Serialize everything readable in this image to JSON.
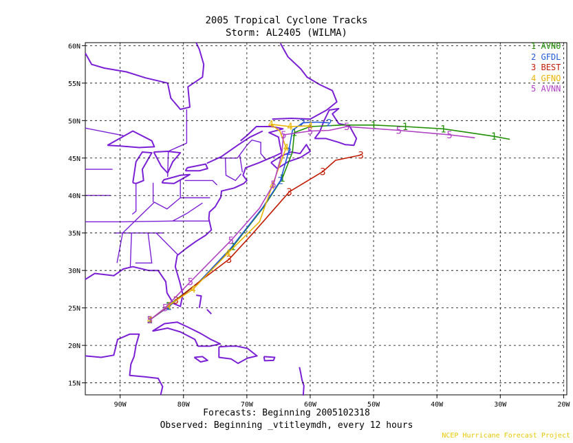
{
  "title": "2005 Tropical Cyclone Tracks",
  "subtitle": "Storm: AL2405 (WILMA)",
  "footer_forecasts": "Forecasts: Beginning 2005102318",
  "footer_observed": "Observed: Beginning _vtitleymdh, every 12 hours",
  "credit": "NCEP Hurricane Forecast Project",
  "colors": {
    "land": "#7a1fd6",
    "grid": "#000000",
    "AVNO": "#1e8f00",
    "GFDL": "#1f56d6",
    "BEST": "#c21a00",
    "GFNO": "#e8b400",
    "AVNN": "#b03fc4"
  },
  "legend": [
    {
      "num": "1",
      "name": "AVNO",
      "color": "#1e8f00"
    },
    {
      "num": "2",
      "name": "GFDL",
      "color": "#1f56d6"
    },
    {
      "num": "3",
      "name": "BEST",
      "color": "#c21a00"
    },
    {
      "num": "4",
      "name": "GFNO",
      "color": "#e8b400"
    },
    {
      "num": "5",
      "name": "AVNN",
      "color": "#b03fc4"
    }
  ],
  "axes": {
    "x_ticks": [
      "90W",
      "80W",
      "70W",
      "60W",
      "50W",
      "40W",
      "30W",
      "20W"
    ],
    "y_ticks": [
      "15N",
      "20N",
      "25N",
      "30N",
      "35N",
      "40N",
      "45N",
      "50N",
      "55N",
      "60N"
    ],
    "lon_range": [
      -95.5,
      -19.5
    ],
    "lat_range": [
      13.4,
      60.4
    ]
  },
  "chart_data": {
    "type": "line",
    "grid": true,
    "tracks": [
      {
        "name": "AVNO",
        "marker": "1",
        "points": [
          [
            -85.3,
            23.4
          ],
          [
            -82.4,
            25.3
          ],
          [
            -77.5,
            28.5
          ],
          [
            -72.2,
            33.2
          ],
          [
            -67.4,
            38.4
          ],
          [
            -64.4,
            42.3
          ],
          [
            -62.8,
            45.8
          ],
          [
            -62.5,
            48.4
          ],
          [
            -60.0,
            49.2
          ],
          [
            -55.0,
            49.4
          ],
          [
            -50.0,
            49.4
          ],
          [
            -45.0,
            49.2
          ],
          [
            -39.0,
            48.9
          ],
          [
            -35.0,
            48.4
          ],
          [
            -31.0,
            47.9
          ],
          [
            -28.5,
            47.5
          ]
        ],
        "labeled": [
          [
            -85.3,
            23.4
          ],
          [
            -82.4,
            25.3
          ],
          [
            -72.2,
            33.2
          ],
          [
            -64.4,
            42.3
          ],
          [
            -62.5,
            48.4
          ],
          [
            -50.0,
            49.4
          ],
          [
            -45.0,
            49.2
          ],
          [
            -39.0,
            48.9
          ],
          [
            -31.0,
            47.9
          ]
        ]
      },
      {
        "name": "GFDL",
        "marker": "2",
        "points": [
          [
            -85.3,
            23.4
          ],
          [
            -82.3,
            25.2
          ],
          [
            -77.5,
            28.5
          ],
          [
            -72.5,
            33.0
          ],
          [
            -67.5,
            38.4
          ],
          [
            -64.7,
            42.0
          ],
          [
            -63.4,
            45.9
          ],
          [
            -62.8,
            48.7
          ],
          [
            -61.2,
            49.7
          ],
          [
            -59.0,
            49.8
          ],
          [
            -57.0,
            49.7
          ]
        ],
        "labeled": [
          [
            -85.3,
            23.4
          ],
          [
            -82.3,
            25.2
          ],
          [
            -64.7,
            42.0
          ],
          [
            -63.4,
            45.9
          ],
          [
            -61.2,
            49.7
          ],
          [
            -57.0,
            49.7
          ]
        ]
      },
      {
        "name": "BEST",
        "marker": "3",
        "points": [
          [
            -85.3,
            23.4
          ],
          [
            -81.2,
            26.0
          ],
          [
            -77.5,
            28.5
          ],
          [
            -72.8,
            31.5
          ],
          [
            -69.0,
            35.0
          ],
          [
            -63.3,
            40.5
          ],
          [
            -58.0,
            43.2
          ],
          [
            -56.0,
            44.7
          ],
          [
            -52.0,
            45.4
          ]
        ],
        "labeled": [
          [
            -85.3,
            23.4
          ],
          [
            -81.2,
            26.0
          ],
          [
            -72.8,
            31.5
          ],
          [
            -63.3,
            40.5
          ],
          [
            -58.0,
            43.2
          ],
          [
            -52.0,
            45.4
          ]
        ]
      },
      {
        "name": "GFNO",
        "marker": "4",
        "points": [
          [
            -85.3,
            23.4
          ],
          [
            -82.4,
            25.3
          ],
          [
            -78.5,
            27.5
          ],
          [
            -73.0,
            32.3
          ],
          [
            -68.0,
            36.5
          ],
          [
            -66.0,
            41.3
          ],
          [
            -63.8,
            46.4
          ],
          [
            -64.8,
            48.6
          ],
          [
            -66.2,
            49.5
          ],
          [
            -63.2,
            49.2
          ],
          [
            -60.0,
            49.3
          ]
        ],
        "labeled": [
          [
            -85.3,
            23.4
          ],
          [
            -82.4,
            25.3
          ],
          [
            -78.5,
            27.5
          ],
          [
            -73.0,
            32.3
          ],
          [
            -66.0,
            41.3
          ],
          [
            -63.8,
            46.4
          ],
          [
            -66.2,
            49.5
          ],
          [
            -63.2,
            49.2
          ],
          [
            -60.0,
            49.3
          ]
        ]
      },
      {
        "name": "AVNN",
        "marker": "5",
        "points": [
          [
            -85.3,
            23.4
          ],
          [
            -82.9,
            25.0
          ],
          [
            -78.9,
            28.5
          ],
          [
            -72.5,
            34.0
          ],
          [
            -68.0,
            38.3
          ],
          [
            -65.8,
            41.5
          ],
          [
            -64.5,
            45.5
          ],
          [
            -64.2,
            48.1
          ],
          [
            -60.0,
            48.6
          ],
          [
            -57.0,
            48.7
          ],
          [
            -54.2,
            49.2
          ],
          [
            -46.0,
            48.7
          ],
          [
            -38.0,
            48.1
          ],
          [
            -34.0,
            47.7
          ]
        ],
        "labeled": [
          [
            -85.3,
            23.4
          ],
          [
            -82.9,
            25.0
          ],
          [
            -78.9,
            28.5
          ],
          [
            -72.5,
            34.0
          ],
          [
            -65.8,
            41.5
          ],
          [
            -64.2,
            48.1
          ],
          [
            -60.0,
            48.6
          ],
          [
            -54.2,
            49.2
          ],
          [
            -46.0,
            48.7
          ],
          [
            -38.0,
            48.1
          ]
        ]
      }
    ]
  }
}
